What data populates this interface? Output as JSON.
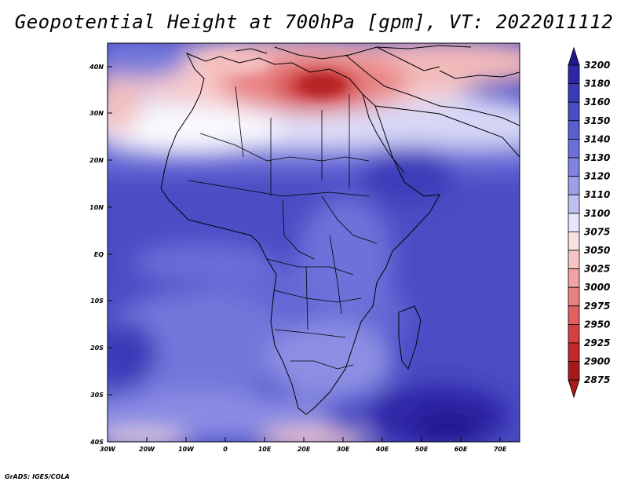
{
  "title": "Geopotential Height at 700hPa [gpm], VT: 2022011112",
  "credit": "GrADS: IGES/COLA",
  "map": {
    "lat_labels": [
      "40N",
      "30N",
      "20N",
      "10N",
      "EQ",
      "10S",
      "20S",
      "30S",
      "40S"
    ],
    "lon_labels": [
      "30W",
      "20W",
      "10W",
      "0",
      "10E",
      "20E",
      "30E",
      "40E",
      "50E",
      "60E",
      "70E"
    ]
  },
  "colorbar": {
    "levels": [
      "3200",
      "3180",
      "3160",
      "3150",
      "3140",
      "3130",
      "3120",
      "3110",
      "3100",
      "3075",
      "3050",
      "3025",
      "3000",
      "2975",
      "2950",
      "2925",
      "2900",
      "2875"
    ],
    "colors": [
      "#23178f",
      "#2e28a6",
      "#3b3ab8",
      "#4a4cc4",
      "#5b5ecf",
      "#6d70d9",
      "#8183e0",
      "#9c9ee8",
      "#bfc0f1",
      "#e6e6fa",
      "#fbe1e1",
      "#f6c4c4",
      "#f0a3a3",
      "#e88181",
      "#e06060",
      "#d43f3f",
      "#c42929",
      "#a81a1a"
    ]
  }
}
